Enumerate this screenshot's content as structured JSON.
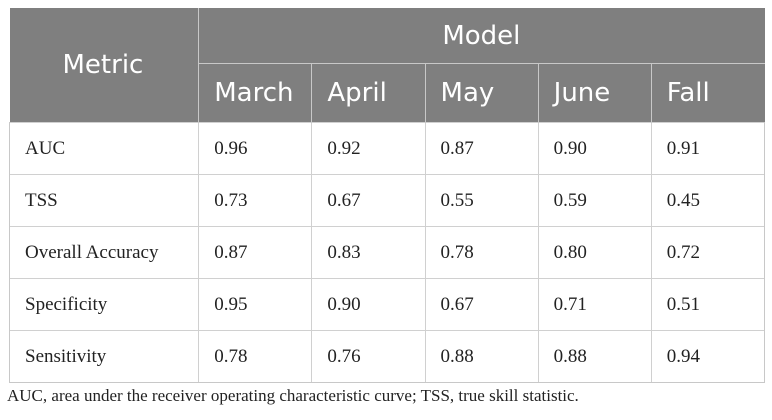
{
  "table": {
    "model_header": "Model",
    "metric_header": "Metric",
    "columns": [
      "March",
      "April",
      "May",
      "June",
      "Fall"
    ],
    "rows": [
      {
        "metric": "AUC",
        "values": [
          "0.96",
          "0.92",
          "0.87",
          "0.90",
          "0.91"
        ]
      },
      {
        "metric": "TSS",
        "values": [
          "0.73",
          "0.67",
          "0.55",
          "0.59",
          "0.45"
        ]
      },
      {
        "metric": "Overall Accuracy",
        "values": [
          "0.87",
          "0.83",
          "0.78",
          "0.80",
          "0.72"
        ]
      },
      {
        "metric": "Specificity",
        "values": [
          "0.95",
          "0.90",
          "0.67",
          "0.71",
          "0.51"
        ]
      },
      {
        "metric": "Sensitivity",
        "values": [
          "0.78",
          "0.76",
          "0.88",
          "0.88",
          "0.94"
        ]
      }
    ]
  },
  "footnote": "AUC, area under the receiver operating characteristic curve; TSS, true skill statistic.",
  "colors": {
    "header_bg": "#7f7f7f",
    "header_text": "#ffffff",
    "body_text": "#222222"
  }
}
